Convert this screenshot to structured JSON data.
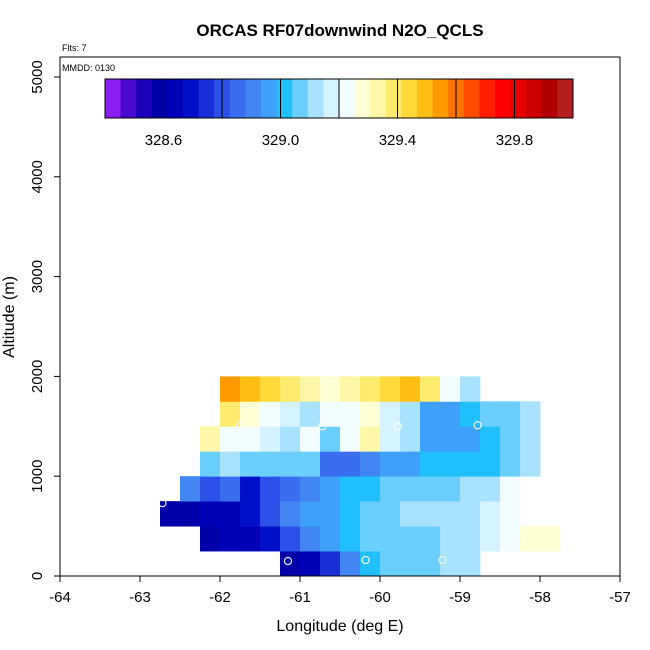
{
  "chart_data": {
    "type": "heatmap",
    "title": "ORCAS RF07downwind N2O_QCLS",
    "xlabel": "Longitude (deg E)",
    "ylabel": "Altitude (m)",
    "annotations": {
      "flights": "Flts: 7",
      "date": "MMDD: 0130"
    },
    "xlim": [
      -64,
      -57
    ],
    "ylim": [
      0,
      5200
    ],
    "x_ticks": [
      -64,
      -63,
      -62,
      -61,
      -60,
      -59,
      -58,
      -57
    ],
    "x_tick_labels": [
      "-64",
      "-63",
      "-62",
      "-61",
      "-60",
      "-59",
      "-58",
      "-57"
    ],
    "y_ticks": [
      0,
      1000,
      2000,
      3000,
      4000,
      5000
    ],
    "y_tick_labels": [
      "0",
      "1000",
      "2000",
      "3000",
      "4000",
      "5000"
    ],
    "cell_width_deg": 0.25,
    "cell_height_m": 250,
    "colorbar": {
      "min": 328.4,
      "max": 330.0,
      "ticks": [
        328.6,
        329.0,
        329.4,
        329.8
      ],
      "tick_labels": [
        "328.6",
        "329.0",
        "329.4",
        "329.8"
      ],
      "colors": [
        "#8b1eef",
        "#4a0ad0",
        "#1a00b8",
        "#0000a8",
        "#0000b8",
        "#0010c8",
        "#1a2ed8",
        "#2c50e8",
        "#3a6ef0",
        "#4286f4",
        "#3ea0f8",
        "#20c0ff",
        "#6acfff",
        "#a8e2ff",
        "#d4f2ff",
        "#f2fdff",
        "#ffffd6",
        "#fff7a8",
        "#ffeb6e",
        "#ffd83a",
        "#ffbe14",
        "#ff9a00",
        "#ff7400",
        "#ff4a00",
        "#ff1e00",
        "#ff0000",
        "#e80000",
        "#cc0000",
        "#b00000",
        "#b41e1e"
      ]
    },
    "rows": [
      {
        "alt": 0,
        "x_start": -61.25,
        "values": [
          328.58,
          328.62,
          328.75,
          328.92,
          329.01,
          329.04,
          329.06,
          329.08,
          329.1,
          329.12
        ]
      },
      {
        "alt": 250,
        "x_start": -62.25,
        "values": [
          328.6,
          328.62,
          328.64,
          328.68,
          328.82,
          328.92,
          328.98,
          329.0,
          329.04,
          329.06,
          329.07,
          329.08,
          329.1,
          329.12,
          329.16,
          329.22,
          329.26,
          329.3
        ]
      },
      {
        "alt": 500,
        "x_start": -62.75,
        "values": [
          328.58,
          328.6,
          328.62,
          328.66,
          328.7,
          328.78,
          328.88,
          328.94,
          328.98,
          329.02,
          329.06,
          329.08,
          329.1,
          329.1,
          329.12,
          329.14,
          329.18,
          329.22
        ]
      },
      {
        "alt": 750,
        "x_start": -62.5,
        "values": [
          328.9,
          328.82,
          328.86,
          328.7,
          328.78,
          328.84,
          328.9,
          328.96,
          328.99,
          329.01,
          329.05,
          329.06,
          329.06,
          329.08,
          329.1,
          329.14,
          329.2
        ]
      },
      {
        "alt": 1000,
        "x_start": -62.25,
        "values": [
          329.08,
          329.1,
          329.06,
          329.06,
          329.08,
          329.04,
          328.86,
          328.84,
          328.9,
          328.94,
          328.98,
          328.99,
          329.0,
          329.01,
          329.03,
          329.08,
          329.14
        ]
      },
      {
        "alt": 1250,
        "x_start": -62.25,
        "values": [
          329.32,
          329.22,
          329.2,
          329.16,
          329.14,
          329.2,
          329.08,
          329.22,
          329.34,
          329.18,
          329.12,
          328.94,
          328.96,
          328.98,
          329.0,
          329.06,
          329.1
        ]
      },
      {
        "alt": 1500,
        "x_start": -62.0,
        "values": [
          329.36,
          329.26,
          329.22,
          329.18,
          329.14,
          329.2,
          329.24,
          329.28,
          329.16,
          329.1,
          328.98,
          328.98,
          328.99,
          329.04,
          329.08,
          329.12
        ]
      },
      {
        "alt": 1750,
        "x_start": -62.0,
        "values": [
          329.54,
          329.48,
          329.44,
          329.4,
          329.34,
          329.3,
          329.32,
          329.38,
          329.42,
          329.48,
          329.36,
          329.24,
          329.12
        ]
      }
    ],
    "markers": [
      {
        "lon": -62.72,
        "alt": 730
      },
      {
        "lon": -61.75,
        "alt": 1510
      },
      {
        "lon": -60.72,
        "alt": 1500
      },
      {
        "lon": -59.78,
        "alt": 1500
      },
      {
        "lon": -58.78,
        "alt": 1510
      },
      {
        "lon": -61.15,
        "alt": 150
      },
      {
        "lon": -60.18,
        "alt": 160
      },
      {
        "lon": -59.22,
        "alt": 160
      },
      {
        "lon": -58.32,
        "alt": 300
      }
    ]
  }
}
